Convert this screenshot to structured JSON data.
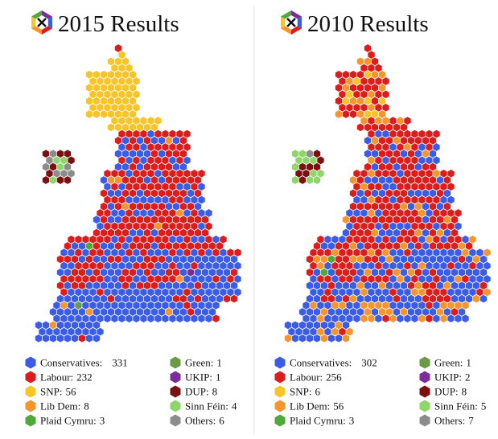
{
  "panels": [
    {
      "title": "2015 Results",
      "legend": [
        {
          "label": "Conservatives:",
          "count": 331,
          "color": "#3a5ce6"
        },
        {
          "label": "Labour:",
          "count": 232,
          "color": "#dd1c1c"
        },
        {
          "label": "SNP:",
          "count": 56,
          "color": "#f7c52a"
        },
        {
          "label": "Lib Dem:",
          "count": 8,
          "color": "#f7952d"
        },
        {
          "label": "Plaid Cymru:",
          "count": 3,
          "color": "#4fa83a"
        },
        {
          "label": "Green:",
          "count": 1,
          "color": "#6a9a45"
        },
        {
          "label": "UKIP:",
          "count": 1,
          "color": "#7b2c9a"
        },
        {
          "label": "DUP:",
          "count": 8,
          "color": "#7a1010"
        },
        {
          "label": "Sinn Féin:",
          "count": 4,
          "color": "#8fd66a"
        },
        {
          "label": "Others:",
          "count": 6,
          "color": "#8c8c8c"
        }
      ]
    },
    {
      "title": "2010 Results",
      "legend": [
        {
          "label": "Conservatives:",
          "count": 302,
          "color": "#3a5ce6"
        },
        {
          "label": "Labour:",
          "count": 256,
          "color": "#dd1c1c"
        },
        {
          "label": "SNP:",
          "count": 6,
          "color": "#f7c52a"
        },
        {
          "label": "Lib Dem:",
          "count": 56,
          "color": "#f7952d"
        },
        {
          "label": "Plaid Cymru:",
          "count": 3,
          "color": "#4fa83a"
        },
        {
          "label": "Green:",
          "count": 1,
          "color": "#6a9a45"
        },
        {
          "label": "UKIP:",
          "count": 2,
          "color": "#7b2c9a"
        },
        {
          "label": "DUP:",
          "count": 8,
          "color": "#7a1010"
        },
        {
          "label": "Sinn Féin:",
          "count": 5,
          "color": "#8fd66a"
        },
        {
          "label": "Others:",
          "count": 7,
          "color": "#8c8c8c"
        }
      ]
    }
  ]
}
